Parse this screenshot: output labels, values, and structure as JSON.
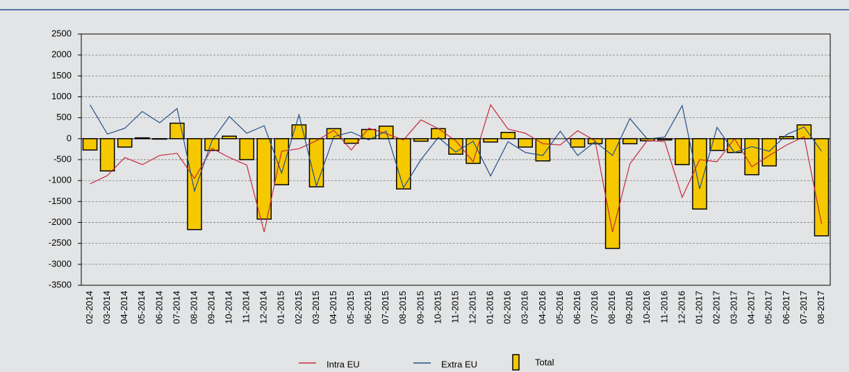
{
  "chart_data": {
    "type": "combo",
    "categories": [
      "02-2014",
      "03-2014",
      "04-2014",
      "05-2014",
      "06-2014",
      "07-2014",
      "08-2014",
      "09-2014",
      "10-2014",
      "11-2014",
      "12-2014",
      "01-2015",
      "02-2015",
      "03-2015",
      "04-2015",
      "05-2015",
      "06-2015",
      "07-2015",
      "08-2015",
      "09-2015",
      "10-2015",
      "11-2015",
      "12-2015",
      "01-2016",
      "02-2016",
      "03-2016",
      "04-2016",
      "05-2016",
      "06-2016",
      "07-2016",
      "08-2016",
      "09-2016",
      "10-2016",
      "11-2016",
      "12-2016",
      "01-2017",
      "02-2017",
      "03-2017",
      "04-2017",
      "05-2017",
      "06-2017",
      "07-2017",
      "08-2017"
    ],
    "series": [
      {
        "name": "Intra EU",
        "type": "line",
        "color": "#c8283c",
        "values": [
          -1080,
          -880,
          -450,
          -620,
          -400,
          -350,
          -950,
          -230,
          -450,
          -630,
          -2230,
          -300,
          -240,
          -50,
          200,
          -270,
          250,
          120,
          -30,
          450,
          240,
          -50,
          -550,
          810,
          230,
          130,
          -120,
          -150,
          190,
          -50,
          -2230,
          -600,
          -40,
          -70,
          -1400,
          -500,
          -550,
          0,
          -670,
          -400,
          -150,
          50,
          -2030
        ]
      },
      {
        "name": "Extra EU",
        "type": "line",
        "color": "#1f4e8c",
        "values": [
          810,
          110,
          250,
          650,
          380,
          720,
          -1250,
          -50,
          530,
          130,
          310,
          -820,
          570,
          -1130,
          50,
          160,
          -30,
          180,
          -1170,
          -500,
          30,
          -320,
          -60,
          -890,
          -70,
          -330,
          -400,
          180,
          -400,
          -70,
          -400,
          480,
          -10,
          40,
          790,
          -1200,
          270,
          -330,
          -190,
          -300,
          100,
          280,
          -300
        ]
      },
      {
        "name": "Total",
        "type": "bar",
        "color": "#f5c800",
        "values": [
          -270,
          -770,
          -200,
          20,
          -10,
          370,
          -2170,
          -280,
          60,
          -500,
          -1920,
          -1100,
          330,
          -1150,
          240,
          -110,
          220,
          300,
          -1200,
          -60,
          240,
          -370,
          -590,
          -80,
          150,
          -200,
          -530,
          0,
          -200,
          -120,
          -2620,
          -120,
          -50,
          -30,
          -620,
          -1680,
          -280,
          -330,
          -860,
          -650,
          50,
          330,
          -2320
        ]
      }
    ],
    "ylim": [
      -3500,
      2500
    ],
    "yticks": [
      -3500,
      -3000,
      -2500,
      -2000,
      -1500,
      -1000,
      -500,
      0,
      500,
      1000,
      1500,
      2000,
      2500
    ],
    "grid": true
  }
}
